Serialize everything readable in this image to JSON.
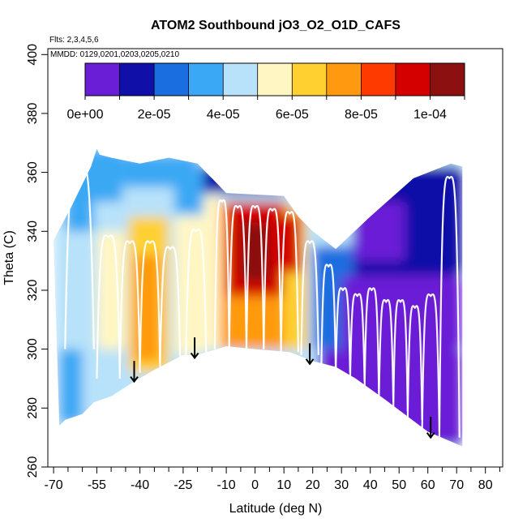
{
  "chart_data": {
    "type": "heatmap",
    "title": "ATOM2 Southbound jO3_O2_O1D_CAFS",
    "annotations": {
      "flights": "Flts: 2,3,4,5,6",
      "dates": "MMDD: 0129,0201,0203,0205,0210"
    },
    "xlabel": "Latitude (deg N)",
    "ylabel": "Theta (C)",
    "xlim": [
      -72,
      86
    ],
    "ylim": [
      260,
      402
    ],
    "x_ticks": [
      -70,
      -55,
      -40,
      -25,
      -10,
      0,
      10,
      20,
      30,
      40,
      50,
      60,
      70,
      80
    ],
    "x_minor_ticks": [
      -65,
      -60,
      -50,
      -45,
      -35,
      -30,
      -20,
      -15,
      -5,
      5,
      15,
      25,
      35,
      45,
      55,
      65,
      75,
      85
    ],
    "y_ticks": [
      260,
      280,
      300,
      320,
      340,
      360,
      380,
      400
    ],
    "colorbar": {
      "min": 0,
      "max": 0.00011,
      "tick_values": [
        0,
        2e-05,
        4e-05,
        6e-05,
        8e-05,
        0.0001
      ],
      "tick_labels": [
        "0e+00",
        "2e-05",
        "4e-05",
        "6e-05",
        "8e-05",
        "1e-04"
      ],
      "bin_edges": [
        0,
        1e-05,
        2e-05,
        3e-05,
        4e-05,
        5e-05,
        6e-05,
        7e-05,
        8e-05,
        9e-05,
        0.0001,
        0.00011
      ],
      "colors": [
        "#6a1fd6",
        "#1010a8",
        "#1a6ee0",
        "#3aa8f4",
        "#b8e2fa",
        "#fff6c4",
        "#ffd030",
        "#ff9a10",
        "#ff3a00",
        "#d40000",
        "#8c1010"
      ]
    },
    "domain_top": [
      [
        -70,
        337
      ],
      [
        -64,
        348
      ],
      [
        -57,
        362
      ],
      [
        -55,
        368
      ],
      [
        -54,
        366
      ],
      [
        -50,
        365
      ],
      [
        -40,
        363
      ],
      [
        -30,
        365
      ],
      [
        -20,
        363
      ],
      [
        -15,
        358
      ],
      [
        -10,
        353
      ],
      [
        10,
        352
      ],
      [
        15,
        345
      ],
      [
        20,
        340
      ],
      [
        28,
        334
      ],
      [
        40,
        345
      ],
      [
        55,
        358
      ],
      [
        68,
        363
      ],
      [
        72,
        362
      ]
    ],
    "domain_bottom": [
      [
        72,
        267
      ],
      [
        60,
        272
      ],
      [
        45,
        283
      ],
      [
        35,
        290
      ],
      [
        28,
        294
      ],
      [
        20,
        296
      ],
      [
        12,
        299
      ],
      [
        0,
        300
      ],
      [
        -10,
        301
      ],
      [
        -20,
        298
      ],
      [
        -25,
        298
      ],
      [
        -35,
        293
      ],
      [
        -42,
        289
      ],
      [
        -50,
        284
      ],
      [
        -56,
        282
      ],
      [
        -60,
        278
      ],
      [
        -66,
        276
      ],
      [
        -68,
        274
      ]
    ],
    "field_regions": [
      {
        "x": [
          -70,
          72
        ],
        "y": [
          265,
          370
        ],
        "value": 4.5e-05
      },
      {
        "x": [
          -70,
          -52
        ],
        "y": [
          273,
          345
        ],
        "value": 4e-05
      },
      {
        "x": [
          -68,
          -60
        ],
        "y": [
          275,
          300
        ],
        "value": 3e-05
      },
      {
        "x": [
          -66,
          -56
        ],
        "y": [
          340,
          368
        ],
        "value": 3.8e-05
      },
      {
        "x": [
          -58,
          -46
        ],
        "y": [
          350,
          368
        ],
        "value": 3.5e-05
      },
      {
        "x": [
          -46,
          -20
        ],
        "y": [
          355,
          366
        ],
        "value": 3.2e-05
      },
      {
        "x": [
          -20,
          10
        ],
        "y": [
          353,
          362
        ],
        "value": 1.8e-05
      },
      {
        "x": [
          -55,
          -45
        ],
        "y": [
          300,
          340
        ],
        "value": 5e-05
      },
      {
        "x": [
          -44,
          -30
        ],
        "y": [
          292,
          345
        ],
        "value": 6.2e-05
      },
      {
        "x": [
          -42,
          -33
        ],
        "y": [
          296,
          332
        ],
        "value": 7.8e-05
      },
      {
        "x": [
          -28,
          -18
        ],
        "y": [
          298,
          345
        ],
        "value": 5.5e-05
      },
      {
        "x": [
          -28,
          -18
        ],
        "y": [
          346,
          362
        ],
        "value": 3.6e-05
      },
      {
        "x": [
          -18,
          -12
        ],
        "y": [
          300,
          352
        ],
        "value": 5e-05
      },
      {
        "x": [
          -12,
          12
        ],
        "y": [
          300,
          350
        ],
        "value": 7.4e-05
      },
      {
        "x": [
          -10,
          10
        ],
        "y": [
          318,
          350
        ],
        "value": 9.8e-05
      },
      {
        "x": [
          -5,
          5
        ],
        "y": [
          323,
          343
        ],
        "value": 0.000104
      },
      {
        "x": [
          10,
          18
        ],
        "y": [
          300,
          348
        ],
        "value": 6.2e-05
      },
      {
        "x": [
          10,
          16
        ],
        "y": [
          326,
          346
        ],
        "value": 9e-05
      },
      {
        "x": [
          18,
          28
        ],
        "y": [
          294,
          338
        ],
        "value": 4.2e-05
      },
      {
        "x": [
          20,
          36
        ],
        "y": [
          300,
          335
        ],
        "value": 2.2e-05
      },
      {
        "x": [
          22,
          72
        ],
        "y": [
          267,
          300
        ],
        "value": 4e-06
      },
      {
        "x": [
          30,
          72
        ],
        "y": [
          300,
          325
        ],
        "value": 7e-06
      },
      {
        "x": [
          34,
          72
        ],
        "y": [
          325,
          362
        ],
        "value": 1.3e-05
      },
      {
        "x": [
          34,
          52
        ],
        "y": [
          330,
          350
        ],
        "value": 8e-06
      }
    ],
    "tropopause_profiles": [
      {
        "x_start": -66,
        "x_end": -56,
        "y_base": 300,
        "y_top": 365
      },
      {
        "x_start": -55,
        "x_end": -47,
        "y_base": 290,
        "y_top": 340
      },
      {
        "x_start": -47,
        "x_end": -40,
        "y_base": 292,
        "y_top": 338
      },
      {
        "x_start": -40,
        "x_end": -33,
        "y_base": 294,
        "y_top": 338
      },
      {
        "x_start": -33,
        "x_end": -26,
        "y_base": 296,
        "y_top": 336
      },
      {
        "x_start": -24,
        "x_end": -17,
        "y_base": 298,
        "y_top": 342
      },
      {
        "x_start": -14,
        "x_end": -9,
        "y_base": 300,
        "y_top": 352
      },
      {
        "x_start": -9,
        "x_end": -3,
        "y_base": 300,
        "y_top": 350
      },
      {
        "x_start": -3,
        "x_end": 3,
        "y_base": 300,
        "y_top": 350
      },
      {
        "x_start": 3,
        "x_end": 9,
        "y_base": 300,
        "y_top": 349
      },
      {
        "x_start": 9,
        "x_end": 15,
        "y_base": 299,
        "y_top": 348
      },
      {
        "x_start": 16,
        "x_end": 22,
        "y_base": 298,
        "y_top": 338
      },
      {
        "x_start": 23,
        "x_end": 28,
        "y_base": 293,
        "y_top": 330
      },
      {
        "x_start": 28,
        "x_end": 33,
        "y_base": 292,
        "y_top": 322
      },
      {
        "x_start": 33,
        "x_end": 38,
        "y_base": 289,
        "y_top": 320
      },
      {
        "x_start": 38,
        "x_end": 43,
        "y_base": 285,
        "y_top": 322
      },
      {
        "x_start": 43,
        "x_end": 48,
        "y_base": 282,
        "y_top": 318
      },
      {
        "x_start": 48,
        "x_end": 53,
        "y_base": 279,
        "y_top": 318
      },
      {
        "x_start": 53,
        "x_end": 58,
        "y_base": 276,
        "y_top": 316
      },
      {
        "x_start": 58,
        "x_end": 64,
        "y_base": 272,
        "y_top": 320
      },
      {
        "x_start": 64,
        "x_end": 71,
        "y_base": 270,
        "y_top": 360
      }
    ],
    "markers": [
      {
        "x": -42,
        "y_top": 296,
        "y_tip": 289
      },
      {
        "x": -21,
        "y_top": 304,
        "y_tip": 297
      },
      {
        "x": 19,
        "y_top": 302,
        "y_tip": 295
      },
      {
        "x": 61,
        "y_top": 277,
        "y_tip": 270
      }
    ]
  }
}
